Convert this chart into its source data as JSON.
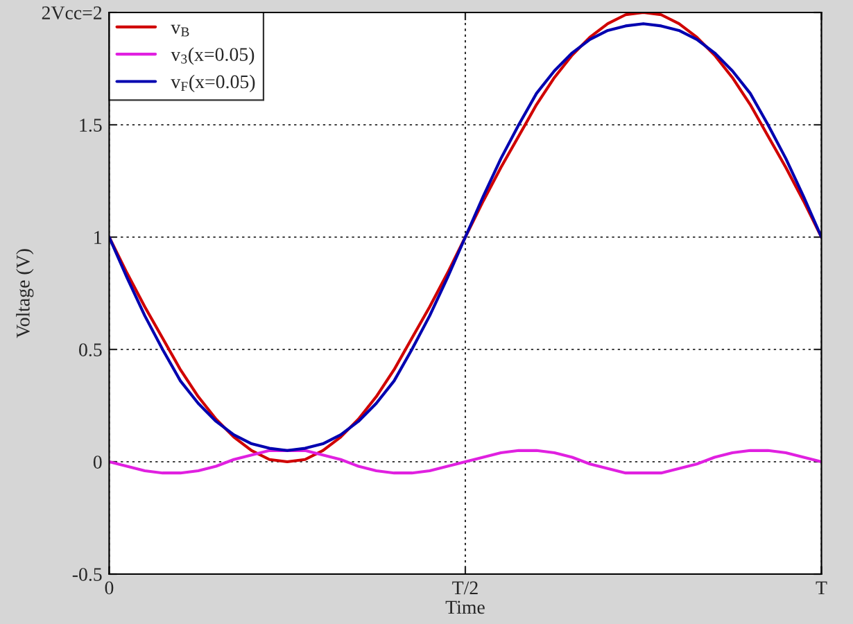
{
  "chart_data": {
    "type": "line",
    "xlabel": "Time",
    "ylabel": "Voltage (V)",
    "categories": [
      "0",
      null,
      null,
      null,
      null,
      null,
      null,
      null,
      null,
      null,
      null,
      null,
      null,
      null,
      null,
      null,
      null,
      null,
      null,
      null,
      "T/2",
      null,
      null,
      null,
      null,
      null,
      null,
      null,
      null,
      null,
      null,
      null,
      null,
      null,
      null,
      null,
      null,
      null,
      null,
      null,
      "T"
    ],
    "series": [
      {
        "name": "v$_{B}$",
        "color": "#d00000",
        "values": [
          1,
          0.84,
          0.69,
          0.55,
          0.41,
          0.29,
          0.19,
          0.11,
          0.05,
          0.01,
          0,
          0.01,
          0.05,
          0.11,
          0.19,
          0.29,
          0.41,
          0.55,
          0.69,
          0.84,
          1,
          1.16,
          1.31,
          1.45,
          1.59,
          1.71,
          1.81,
          1.89,
          1.95,
          1.99,
          2,
          1.99,
          1.95,
          1.89,
          1.81,
          1.71,
          1.59,
          1.45,
          1.31,
          1.16,
          1
        ]
      },
      {
        "name": "v$_{3}$(x=0.05)",
        "color": "#e020e0",
        "values": [
          0,
          -0.02,
          -0.04,
          -0.05,
          -0.05,
          -0.04,
          -0.02,
          0.01,
          0.03,
          0.05,
          0.05,
          0.05,
          0.03,
          0.01,
          -0.02,
          -0.04,
          -0.05,
          -0.05,
          -0.04,
          -0.02,
          0,
          0.02,
          0.04,
          0.05,
          0.05,
          0.04,
          0.02,
          -0.01,
          -0.03,
          -0.05,
          -0.05,
          -0.05,
          -0.03,
          -0.01,
          0.02,
          0.04,
          0.05,
          0.05,
          0.04,
          0.02,
          0
        ]
      },
      {
        "name": "v$_{F}$(x=0.05)",
        "color": "#0000b0",
        "values": [
          1,
          0.82,
          0.65,
          0.5,
          0.36,
          0.26,
          0.18,
          0.12,
          0.08,
          0.06,
          0.05,
          0.06,
          0.08,
          0.12,
          0.18,
          0.26,
          0.36,
          0.5,
          0.65,
          0.82,
          1,
          1.18,
          1.35,
          1.5,
          1.64,
          1.74,
          1.82,
          1.88,
          1.92,
          1.94,
          1.95,
          1.94,
          1.92,
          1.88,
          1.82,
          1.74,
          1.64,
          1.5,
          1.35,
          1.18,
          1
        ]
      }
    ],
    "ylim": [
      -0.5,
      2
    ],
    "yticks": [
      -0.5,
      0,
      0.5,
      1,
      1.5,
      {
        "value": 2,
        "label": "2Vcc=2"
      }
    ],
    "grid": true,
    "legend": "top left",
    "line_style": "solid",
    "marker": "none"
  }
}
